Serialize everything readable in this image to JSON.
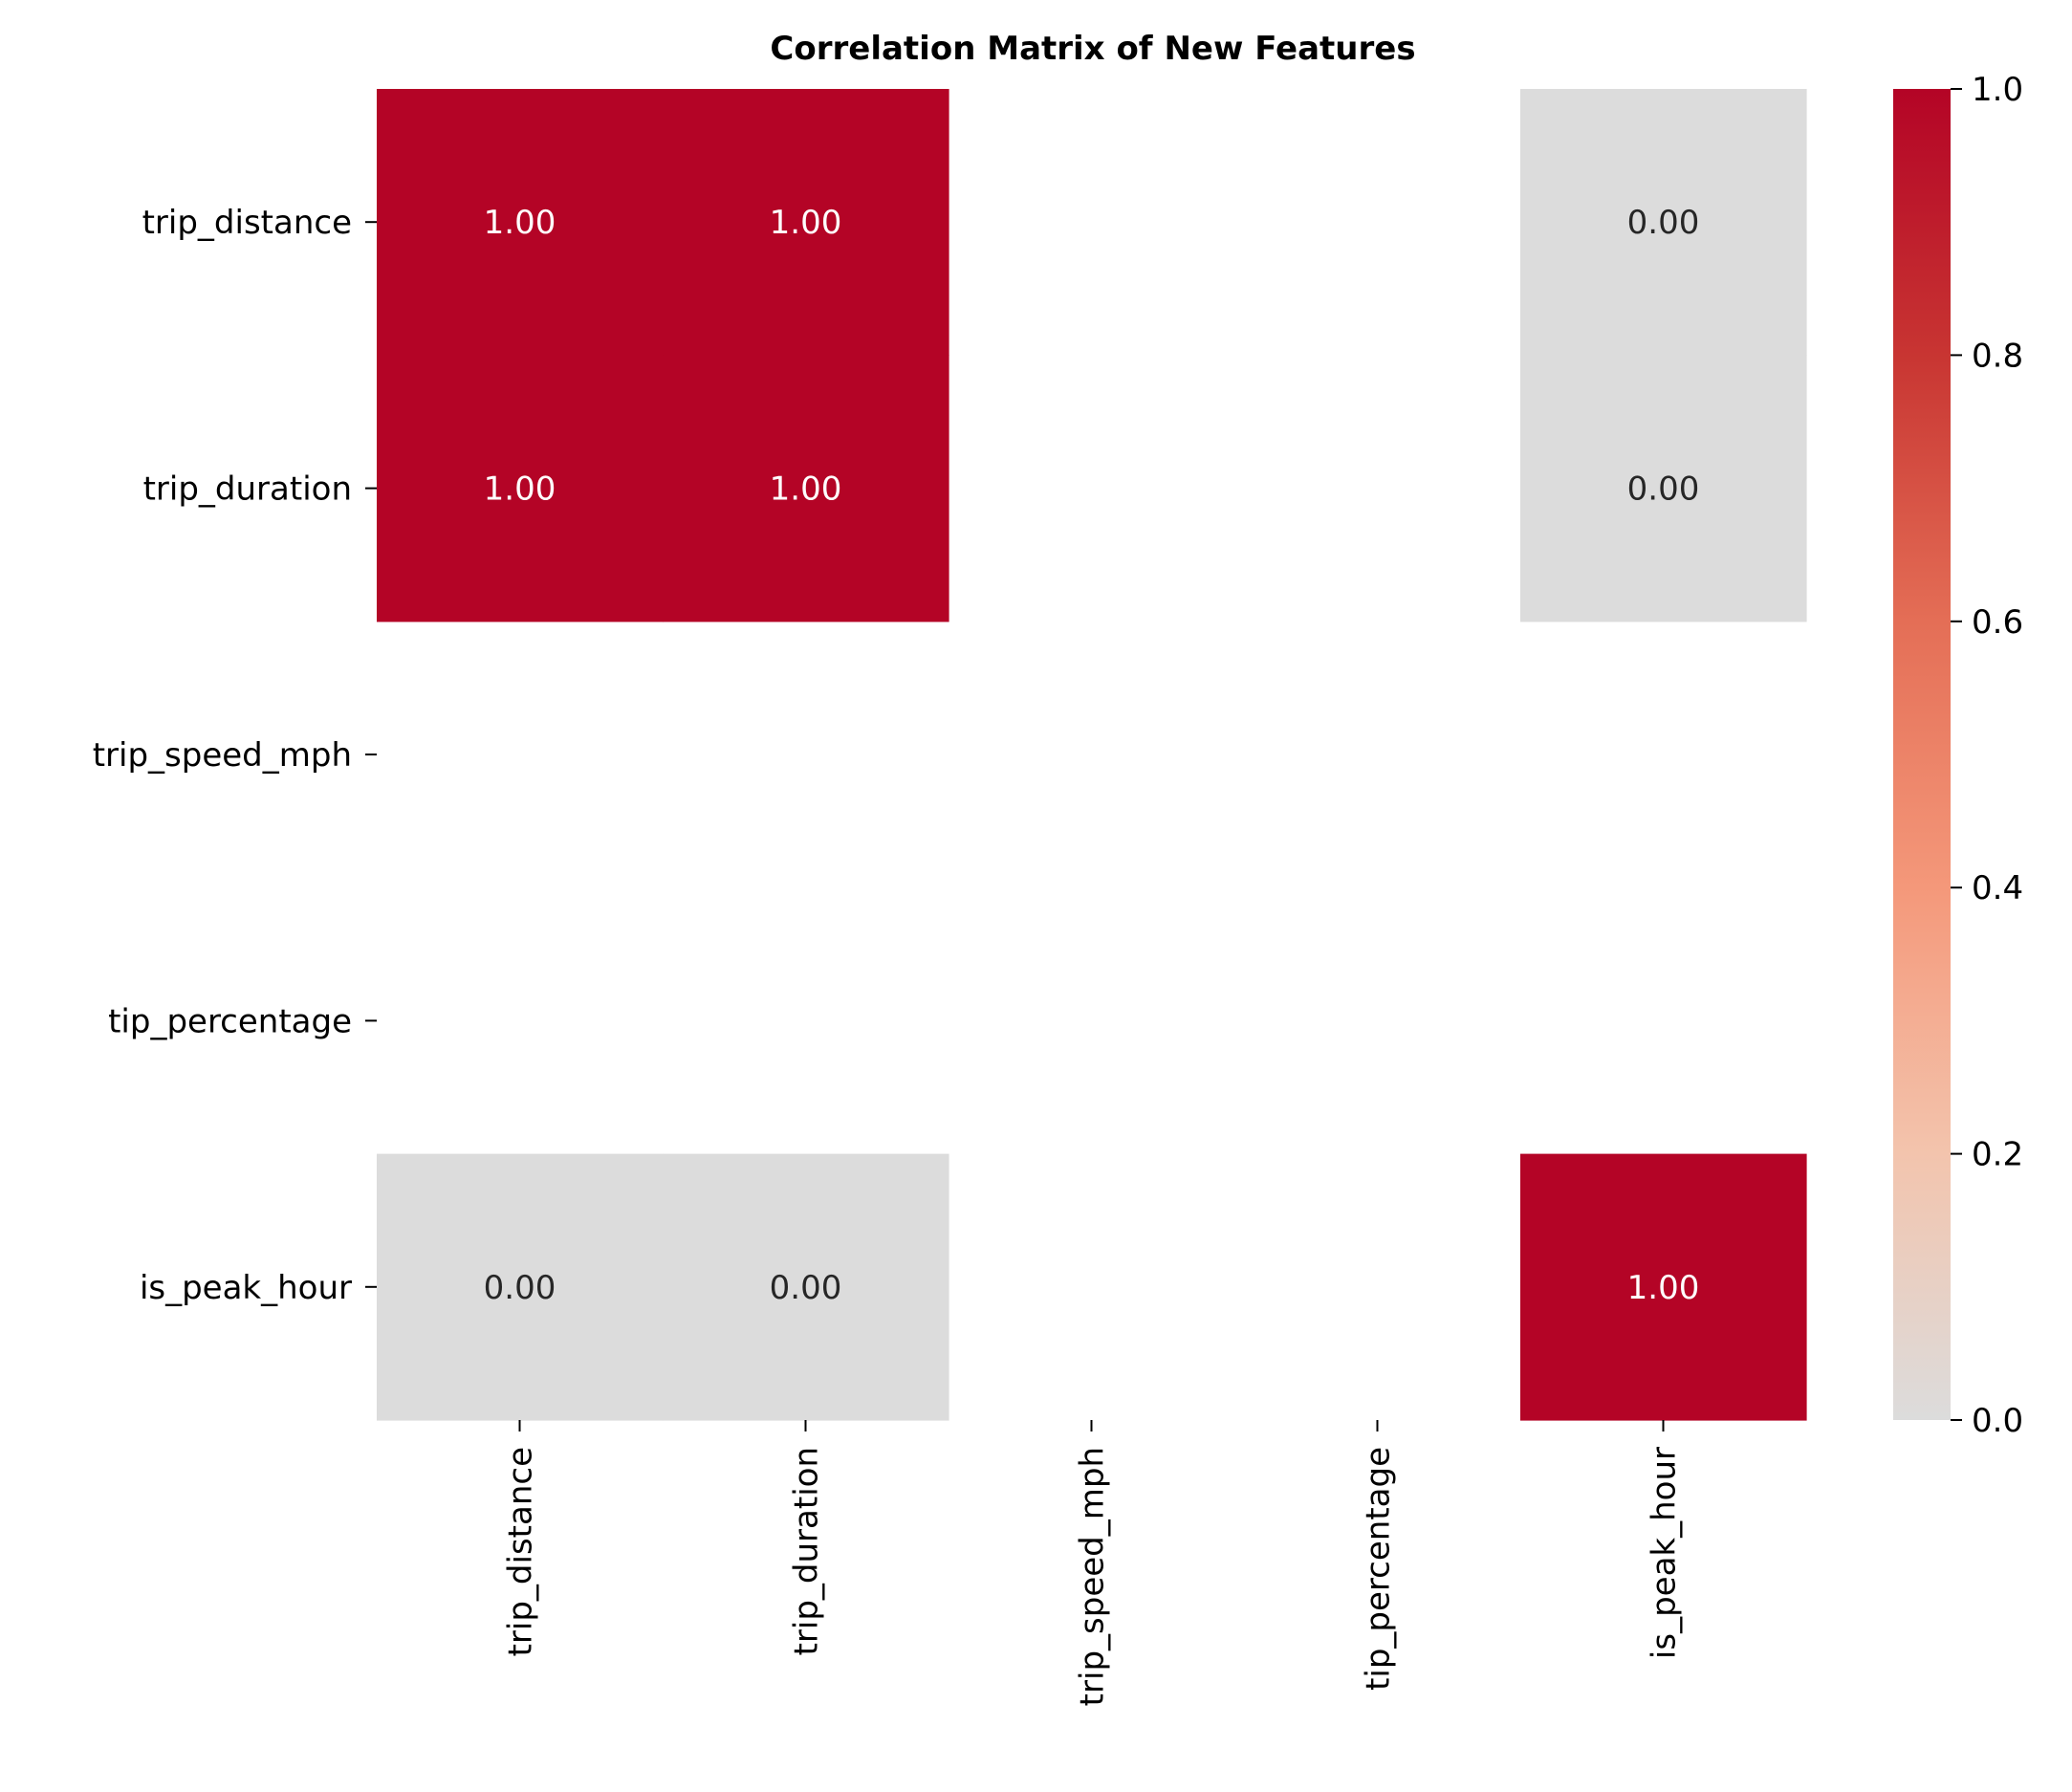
{
  "chart_data": {
    "type": "heatmap",
    "title": "Correlation Matrix of New Features",
    "rows": [
      "trip_distance",
      "trip_duration",
      "trip_speed_mph",
      "tip_percentage",
      "is_peak_hour"
    ],
    "columns": [
      "trip_distance",
      "trip_duration",
      "trip_speed_mph",
      "tip_percentage",
      "is_peak_hour"
    ],
    "values": [
      [
        1.0,
        1.0,
        null,
        null,
        0.0
      ],
      [
        1.0,
        1.0,
        null,
        null,
        0.0
      ],
      [
        null,
        null,
        null,
        null,
        null
      ],
      [
        null,
        null,
        null,
        null,
        null
      ],
      [
        0.0,
        0.0,
        null,
        null,
        1.0
      ]
    ],
    "annotation_format": "0.00",
    "colorbar": {
      "range": [
        0.0,
        1.0
      ],
      "ticks": [
        "0.0",
        "0.2",
        "0.4",
        "0.6",
        "0.8",
        "1.0"
      ],
      "colormap": "coolwarm",
      "colors": [
        "#dcdcdc",
        "#f3c4ad",
        "#f4987a",
        "#e46e56",
        "#c83532",
        "#b40426"
      ]
    },
    "missing_cells": "blank"
  }
}
